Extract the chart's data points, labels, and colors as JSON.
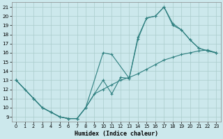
{
  "xlabel": "Humidex (Indice chaleur)",
  "background_color": "#cce8ec",
  "grid_color": "#aacccc",
  "line_color": "#2e7f7f",
  "xlim": [
    -0.5,
    23.5
  ],
  "ylim": [
    8.5,
    21.5
  ],
  "xticks": [
    0,
    1,
    2,
    3,
    4,
    5,
    6,
    7,
    8,
    9,
    10,
    11,
    12,
    13,
    14,
    15,
    16,
    17,
    18,
    19,
    20,
    21,
    22,
    23
  ],
  "yticks": [
    9,
    10,
    11,
    12,
    13,
    14,
    15,
    16,
    17,
    18,
    19,
    20,
    21
  ],
  "line1_x": [
    0,
    1,
    2,
    3,
    4,
    5,
    6,
    7,
    8,
    9,
    10,
    11,
    12,
    13,
    14,
    15,
    16,
    17,
    18,
    19,
    20,
    21,
    22,
    23
  ],
  "line1_y": [
    13,
    12,
    11,
    10,
    9.5,
    9,
    8.8,
    8.8,
    10,
    11.5,
    12,
    12.5,
    13,
    13.3,
    13.7,
    14.2,
    14.7,
    15.2,
    15.5,
    15.8,
    16,
    16.2,
    16.3,
    16
  ],
  "line2_x": [
    0,
    2,
    3,
    4,
    5,
    6,
    7,
    8,
    10,
    11,
    13,
    14,
    15,
    16,
    17,
    18,
    19,
    20,
    21,
    22,
    23
  ],
  "line2_y": [
    13,
    11,
    10,
    9.5,
    9,
    8.8,
    8.8,
    10,
    16,
    15.8,
    13.2,
    17.5,
    19.8,
    20,
    21,
    19.0,
    18.5,
    17.4,
    16.5,
    16.2,
    16
  ],
  "line3_x": [
    0,
    2,
    3,
    4,
    5,
    6,
    7,
    8,
    10,
    11,
    12,
    13,
    14,
    15,
    16,
    17,
    18,
    19,
    20,
    21,
    22,
    23
  ],
  "line3_y": [
    13,
    11,
    10,
    9.5,
    9,
    8.8,
    8.8,
    10,
    13,
    11.5,
    13.3,
    13.2,
    17.7,
    19.8,
    20.0,
    21,
    19.2,
    18.5,
    17.4,
    16.5,
    16.2,
    16
  ]
}
